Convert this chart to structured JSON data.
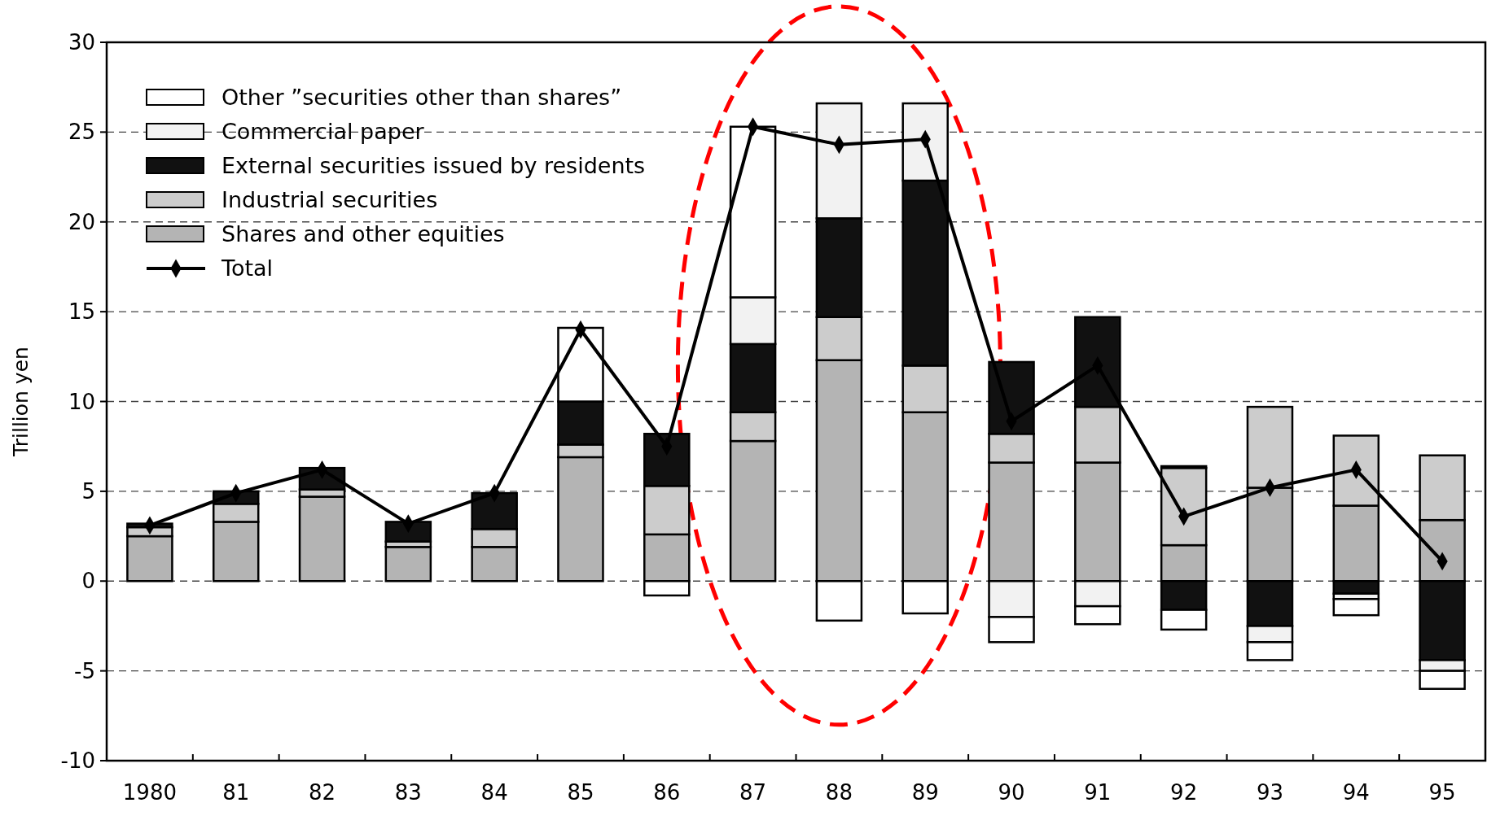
{
  "chart_data": {
    "type": "bar",
    "stacked": true,
    "ylabel": "Trillion yen",
    "categories": [
      "1980",
      "81",
      "82",
      "83",
      "84",
      "85",
      "86",
      "87",
      "88",
      "89",
      "90",
      "91",
      "92",
      "93",
      "94",
      "95"
    ],
    "series": [
      {
        "name": "Shares and other equities",
        "color": "#b4b4b4",
        "values": [
          2.5,
          3.3,
          4.7,
          1.9,
          1.9,
          6.9,
          2.6,
          7.8,
          12.3,
          9.4,
          6.6,
          6.6,
          2.0,
          5.2,
          4.2,
          3.4
        ]
      },
      {
        "name": "Industrial securities",
        "color": "#cccccc",
        "values": [
          0.5,
          1.0,
          0.4,
          0.3,
          1.0,
          0.7,
          2.7,
          1.6,
          2.4,
          2.6,
          1.6,
          3.1,
          4.3,
          4.5,
          3.9,
          3.6
        ]
      },
      {
        "name": "External securities issued by residents",
        "color": "#111111",
        "values": [
          0.2,
          0.7,
          1.2,
          1.1,
          2.0,
          2.4,
          2.9,
          3.8,
          5.5,
          10.3,
          4.0,
          5.0,
          -1.6,
          -2.5,
          -0.7,
          -4.4
        ]
      },
      {
        "name": "Commercial paper",
        "color": "#f2f2f2",
        "values": [
          null,
          null,
          null,
          null,
          null,
          null,
          null,
          2.6,
          6.4,
          4.3,
          -2.0,
          -1.4,
          0.1,
          -0.9,
          -0.3,
          -0.6
        ]
      },
      {
        "name": "Other ”securities other than shares”",
        "color": "#ffffff",
        "values": [
          null,
          null,
          null,
          null,
          null,
          4.1,
          -0.8,
          9.5,
          -2.2,
          -1.8,
          -1.4,
          -1.0,
          -1.1,
          -1.0,
          -0.9,
          -1.0
        ]
      },
      {
        "name": "Total",
        "type": "line",
        "color": "#000000",
        "marker": "diamond",
        "values": [
          3.1,
          4.9,
          6.2,
          3.2,
          4.9,
          14.0,
          7.5,
          25.3,
          24.3,
          24.6,
          8.9,
          12.0,
          3.6,
          5.2,
          6.2,
          1.1
        ]
      }
    ],
    "ylim": [
      -10,
      30
    ],
    "yticks": [
      -10,
      -5,
      0,
      5,
      10,
      15,
      20,
      25,
      30
    ],
    "grid": "y",
    "legend": "top left"
  }
}
